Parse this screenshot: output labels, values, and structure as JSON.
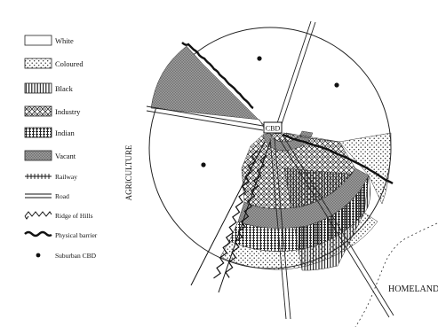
{
  "legend": {
    "items": [
      {
        "key": "white",
        "label": "White"
      },
      {
        "key": "coloured",
        "label": "Coloured"
      },
      {
        "key": "black",
        "label": "Black"
      },
      {
        "key": "industry",
        "label": "Industry"
      },
      {
        "key": "indian",
        "label": "Indian"
      },
      {
        "key": "vacant",
        "label": "Vacant"
      },
      {
        "key": "railway",
        "label": "Railway"
      },
      {
        "key": "road",
        "label": "Road"
      },
      {
        "key": "ridge",
        "label": "Ridge of Hills"
      },
      {
        "key": "barrier",
        "label": "Physical barrier"
      },
      {
        "key": "suburban",
        "label": "Suburban CBD"
      }
    ]
  },
  "map": {
    "cbd_label": "CBD",
    "agriculture_label": "AGRICULTURE",
    "homeland_label": "HOMELAND"
  },
  "colors": {
    "ink": "#111111",
    "background": "#ffffff"
  }
}
